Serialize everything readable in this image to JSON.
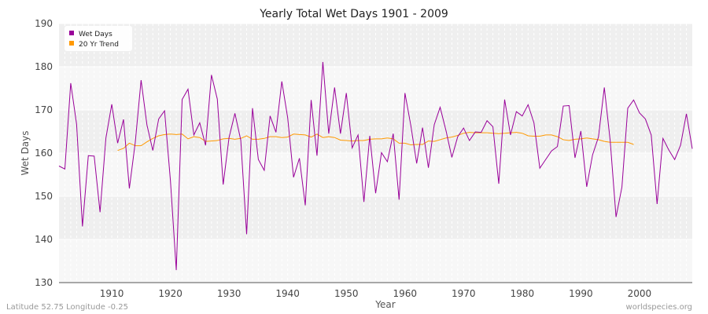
{
  "footer": {
    "left": "Latitude 52.75 Longitude -0.25",
    "right": "worldspecies.org"
  },
  "chart_data": {
    "type": "line",
    "title": "Yearly Total Wet Days 1901 - 2009",
    "xlabel": "Year",
    "ylabel": "Wet Days",
    "xlim": [
      1901,
      2009
    ],
    "ylim": [
      130,
      190
    ],
    "x_ticks": [
      1910,
      1920,
      1930,
      1940,
      1950,
      1960,
      1970,
      1980,
      1990,
      2000
    ],
    "y_ticks": [
      130,
      140,
      150,
      160,
      170,
      180,
      190
    ],
    "grid": true,
    "legend_position": "top-left",
    "colors": {
      "wet_days": "#990099",
      "trend": "#ff9900"
    },
    "series": [
      {
        "name": "Wet Days",
        "x_start": 1901,
        "values": [
          157.0,
          156.3,
          176.2,
          166.7,
          143.0,
          159.4,
          159.3,
          146.3,
          163.5,
          171.3,
          162.3,
          167.8,
          151.8,
          162.4,
          176.9,
          166.5,
          160.6,
          167.9,
          169.8,
          153.7,
          132.9,
          172.4,
          174.8,
          164.2,
          167.0,
          161.8,
          178.1,
          172.5,
          152.7,
          163.6,
          169.2,
          163.0,
          141.2,
          170.4,
          158.5,
          156.0,
          168.6,
          164.8,
          176.6,
          168.2,
          154.4,
          158.8,
          147.9,
          172.3,
          159.4,
          181.1,
          164.5,
          175.2,
          164.5,
          173.9,
          161.2,
          164.2,
          148.7,
          164.0,
          150.7,
          160.1,
          158.0,
          164.5,
          149.2,
          173.9,
          166.4,
          157.6,
          165.9,
          156.6,
          166.6,
          170.6,
          165.2,
          159.0,
          163.8,
          165.8,
          162.9,
          164.9,
          164.8,
          167.5,
          166.1,
          152.9,
          172.4,
          164.2,
          169.6,
          168.6,
          171.2,
          167.0,
          156.5,
          158.5,
          160.5,
          161.5,
          170.9,
          171.0,
          158.9,
          165.1,
          152.2,
          159.6,
          163.7,
          175.2,
          162.9,
          145.2,
          152.1,
          170.4,
          172.3,
          169.3,
          167.9,
          164.2,
          148.2,
          163.4,
          160.7,
          158.5,
          161.8,
          169.1,
          161.0
        ]
      },
      {
        "name": "20 Yr Trend",
        "x_start": 1911,
        "values": [
          160.6,
          161.1,
          162.3,
          161.7,
          161.7,
          162.6,
          163.4,
          164.0,
          164.3,
          164.4,
          164.3,
          164.4,
          163.3,
          163.8,
          163.6,
          162.7,
          162.8,
          162.9,
          163.3,
          163.4,
          163.2,
          163.4,
          164.0,
          163.2,
          163.2,
          163.4,
          163.8,
          163.8,
          163.6,
          163.7,
          164.4,
          164.3,
          164.2,
          163.7,
          164.4,
          163.6,
          163.8,
          163.6,
          163.0,
          162.9,
          162.8,
          162.9,
          162.9,
          163.2,
          163.3,
          163.3,
          163.5,
          163.3,
          162.3,
          162.3,
          161.9,
          162.0,
          162.0,
          162.8,
          162.7,
          163.1,
          163.5,
          163.7,
          164.1,
          164.6,
          164.8,
          164.7,
          164.7,
          164.7,
          164.6,
          164.5,
          164.6,
          164.7,
          164.8,
          164.6,
          164.0,
          163.9,
          163.9,
          164.2,
          164.2,
          163.8,
          163.1,
          162.9,
          163.2,
          163.3,
          163.5,
          163.3,
          163.1,
          162.7,
          162.5,
          162.5,
          162.5,
          162.5,
          162.0
        ]
      }
    ]
  }
}
